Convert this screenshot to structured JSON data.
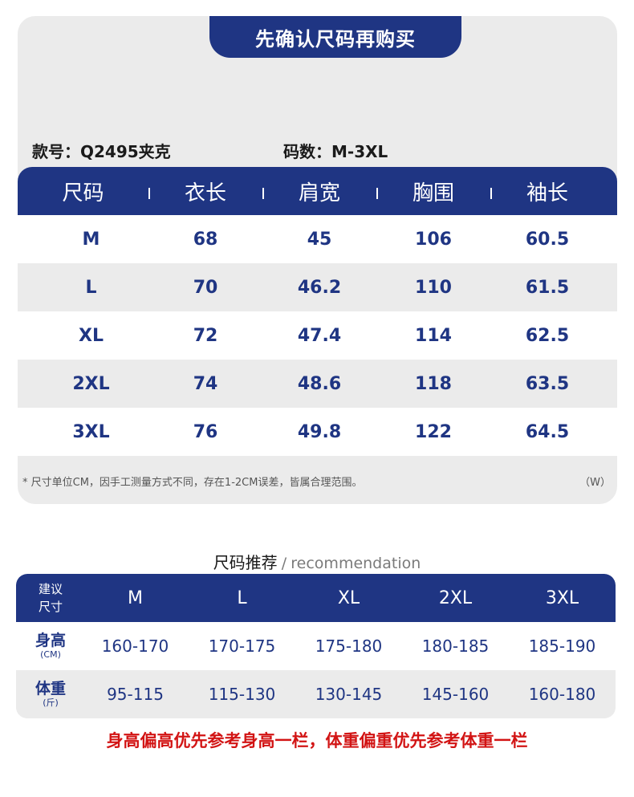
{
  "header": {
    "title": "先确认尺码再购买"
  },
  "meta": {
    "style_no": "款号：Q2495夹克",
    "sizes": "码数：M-3XL"
  },
  "size_table": {
    "headers": [
      "尺码",
      "衣长",
      "肩宽",
      "胸围",
      "袖长"
    ],
    "rows": [
      [
        "M",
        "68",
        "45",
        "106",
        "60.5"
      ],
      [
        "L",
        "70",
        "46.2",
        "110",
        "61.5"
      ],
      [
        "XL",
        "72",
        "47.4",
        "114",
        "62.5"
      ],
      [
        "2XL",
        "74",
        "48.6",
        "118",
        "63.5"
      ],
      [
        "3XL",
        "76",
        "49.8",
        "122",
        "64.5"
      ]
    ]
  },
  "note": {
    "text": "* 尺寸单位CM，因手工测量方式不同，存在1-2CM误差，皆属合理范围。",
    "w": "（W）"
  },
  "recommendation": {
    "title_zh": "尺码推荐",
    "slash": "/",
    "title_en": "recommendation",
    "label_line1": "建议",
    "label_line2": "尺寸",
    "sizes": [
      "M",
      "L",
      "XL",
      "2XL",
      "3XL"
    ],
    "height": {
      "label": "身高",
      "unit": "(CM)",
      "values": [
        "160-170",
        "170-175",
        "175-180",
        "180-185",
        "185-190"
      ]
    },
    "weight": {
      "label": "体重",
      "unit": "(斤)",
      "values": [
        "95-115",
        "115-130",
        "130-145",
        "145-160",
        "160-180"
      ]
    }
  },
  "bottom_note": "身高偏高优先参考身高一栏，体重偏重优先参考体重一栏",
  "colors": {
    "navy": "#1f3583",
    "card_bg": "#ebebeb",
    "warning_red": "#d21414"
  }
}
